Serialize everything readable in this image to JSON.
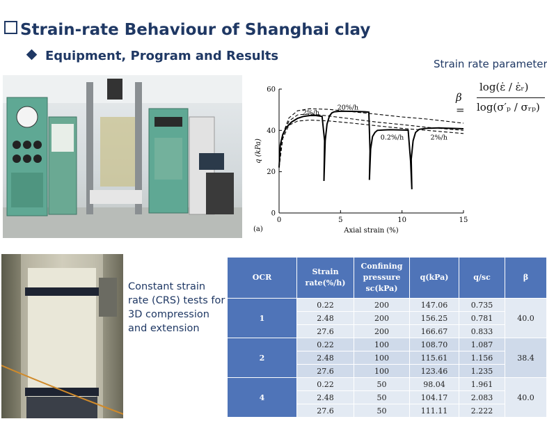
{
  "title": "Strain-rate Behaviour of Shanghai clay",
  "subtitle": "Equipment, Program and Results",
  "formula": {
    "heading": "Strain rate parameter",
    "lhs": "β",
    "equals": "=",
    "numerator": "log(ε̇ / ε̇ᵣ)",
    "denominator": "log(σ′ₚ / σᵣₚ)"
  },
  "crs_text": [
    "Constant strain",
    "rate  (CRS) tests for",
    "3D compression",
    "and extension"
  ],
  "colors": {
    "title": "#1f3864",
    "table_header": "#4f74b8",
    "table_row": "#e3eaf3",
    "table_row_alt": "#cfdaea"
  },
  "chart_data": {
    "type": "line",
    "panel_label": "(a)",
    "xlabel": "Axial strain (%)",
    "ylabel": "q (kPa)",
    "xlim": [
      0,
      15
    ],
    "ylim": [
      0,
      60
    ],
    "xticks": [
      0,
      5,
      10,
      15
    ],
    "yticks": [
      0,
      20,
      40,
      60
    ],
    "annotations": [
      {
        "text": "2%/h",
        "x": 2.6,
        "y": 47.5
      },
      {
        "text": "20%/h",
        "x": 5.6,
        "y": 50
      },
      {
        "text": "0.2%/h",
        "x": 9.2,
        "y": 35.5
      },
      {
        "text": "2%/h",
        "x": 13,
        "y": 35.5
      }
    ],
    "series": [
      {
        "style": "solid",
        "x": [
          0,
          0.1,
          0.3,
          0.6,
          1,
          1.5,
          2,
          2.5,
          3,
          3.5,
          3.7,
          3.65,
          3.75,
          3.9,
          4.1,
          4.3,
          4.5,
          5,
          6,
          7,
          7.3,
          7.4,
          7.35,
          7.45,
          7.6,
          7.8,
          8,
          8.5,
          9,
          10,
          10.5,
          10.7,
          10.8,
          10.75,
          10.9,
          11.1,
          11.4,
          12,
          13,
          14,
          15
        ],
        "y": [
          22,
          33,
          38,
          41.5,
          44,
          45.8,
          46.8,
          47.2,
          47.2,
          46.8,
          35,
          15.5,
          35,
          43,
          47,
          48.5,
          49,
          49.3,
          49.2,
          49,
          48.8,
          30,
          16,
          31,
          37,
          39,
          40,
          40.2,
          40.3,
          40.2,
          40.1,
          25,
          11.5,
          26,
          35,
          39,
          40.5,
          41,
          41.2,
          41,
          40.8
        ]
      },
      {
        "style": "dashed",
        "x": [
          0,
          0.3,
          0.8,
          1.5,
          2.5,
          4,
          6,
          8,
          10,
          12,
          15
        ],
        "y": [
          22,
          38,
          46,
          49.5,
          50.5,
          50.2,
          49,
          47.8,
          46.5,
          45.5,
          43.5
        ]
      },
      {
        "style": "dashed",
        "x": [
          0,
          0.3,
          0.8,
          1.5,
          2.5,
          4,
          6,
          8,
          10,
          12,
          15
        ],
        "y": [
          22,
          37,
          44.5,
          47.5,
          48,
          47,
          45.5,
          44,
          42.8,
          41.5,
          40
        ]
      },
      {
        "style": "dashed",
        "x": [
          0,
          0.3,
          0.8,
          1.5,
          2.5,
          4,
          6,
          8,
          10,
          12,
          15
        ],
        "y": [
          22,
          36,
          42.5,
          44.5,
          45,
          44.6,
          43.5,
          42.2,
          41,
          40,
          38.5
        ]
      }
    ]
  },
  "table": {
    "headers": [
      "OCR",
      "Strain\nrate(%/h)",
      "Confining\npressure\nsc(kPa)",
      "q(kPa)",
      "q/sc",
      "β"
    ],
    "groups": [
      {
        "ocr": "1",
        "beta": "40.0",
        "rows": [
          [
            "0.22",
            "200",
            "147.06",
            "0.735"
          ],
          [
            "2.48",
            "200",
            "156.25",
            "0.781"
          ],
          [
            "27.6",
            "200",
            "166.67",
            "0.833"
          ]
        ]
      },
      {
        "ocr": "2",
        "beta": "38.4",
        "rows": [
          [
            "0.22",
            "100",
            "108.70",
            "1.087"
          ],
          [
            "2.48",
            "100",
            "115.61",
            "1.156"
          ],
          [
            "27.6",
            "100",
            "123.46",
            "1.235"
          ]
        ]
      },
      {
        "ocr": "4",
        "beta": "40.0",
        "rows": [
          [
            "0.22",
            "50",
            "98.04",
            "1.961"
          ],
          [
            "2.48",
            "50",
            "104.17",
            "2.083"
          ],
          [
            "27.6",
            "50",
            "111.11",
            "2.222"
          ]
        ]
      }
    ]
  }
}
